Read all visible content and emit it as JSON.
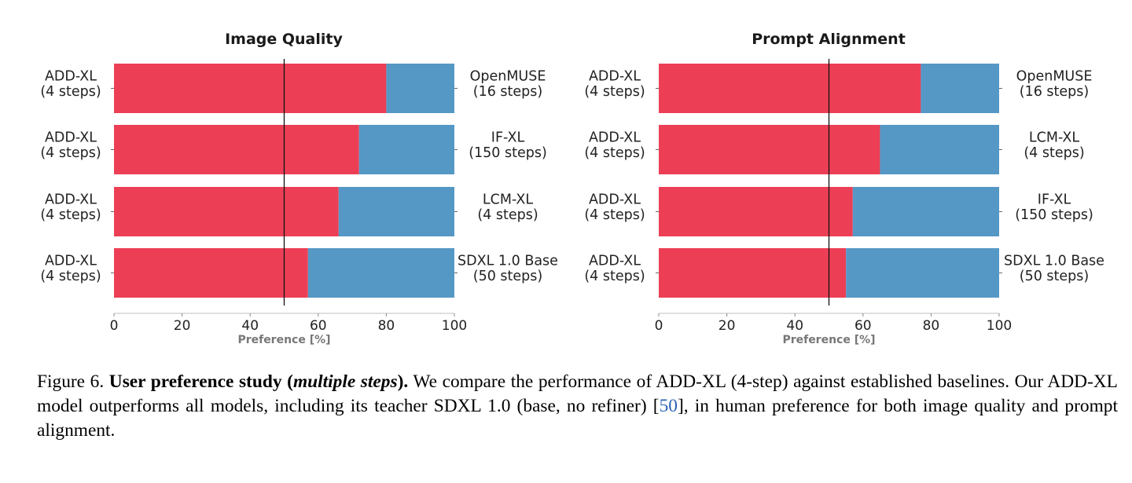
{
  "chart_data": [
    {
      "type": "bar",
      "orientation": "horizontal-stacked",
      "title": "Image Quality",
      "xlabel": "Preference [%]",
      "xlim": [
        0,
        100
      ],
      "xticks": [
        0,
        20,
        40,
        60,
        80,
        100
      ],
      "reference_line": 50,
      "rows": [
        {
          "left_label": [
            "ADD-XL",
            "(4 steps)"
          ],
          "right_label": [
            "OpenMUSE",
            "(16 steps)"
          ],
          "add_xl": 80,
          "baseline": 20
        },
        {
          "left_label": [
            "ADD-XL",
            "(4 steps)"
          ],
          "right_label": [
            "IF-XL",
            "(150 steps)"
          ],
          "add_xl": 72,
          "baseline": 28
        },
        {
          "left_label": [
            "ADD-XL",
            "(4 steps)"
          ],
          "right_label": [
            "LCM-XL",
            "(4 steps)"
          ],
          "add_xl": 66,
          "baseline": 34
        },
        {
          "left_label": [
            "ADD-XL",
            "(4 steps)"
          ],
          "right_label": [
            "SDXL 1.0 Base",
            "(50 steps)"
          ],
          "add_xl": 57,
          "baseline": 43
        }
      ]
    },
    {
      "type": "bar",
      "orientation": "horizontal-stacked",
      "title": "Prompt Alignment",
      "xlabel": "Preference [%]",
      "xlim": [
        0,
        100
      ],
      "xticks": [
        0,
        20,
        40,
        60,
        80,
        100
      ],
      "reference_line": 50,
      "rows": [
        {
          "left_label": [
            "ADD-XL",
            "(4 steps)"
          ],
          "right_label": [
            "OpenMUSE",
            "(16 steps)"
          ],
          "add_xl": 77,
          "baseline": 23
        },
        {
          "left_label": [
            "ADD-XL",
            "(4 steps)"
          ],
          "right_label": [
            "LCM-XL",
            "(4 steps)"
          ],
          "add_xl": 65,
          "baseline": 35
        },
        {
          "left_label": [
            "ADD-XL",
            "(4 steps)"
          ],
          "right_label": [
            "IF-XL",
            "(150 steps)"
          ],
          "add_xl": 57,
          "baseline": 43
        },
        {
          "left_label": [
            "ADD-XL",
            "(4 steps)"
          ],
          "right_label": [
            "SDXL 1.0 Base",
            "(50 steps)"
          ],
          "add_xl": 55,
          "baseline": 45
        }
      ]
    }
  ],
  "colors": {
    "add_xl": "#ec3f56",
    "baseline": "#5598c6",
    "reference_line": "#111111",
    "axis": "#cccccc"
  },
  "caption": {
    "figure_label": "Figure 6.",
    "bold_title_start": "User preference study (",
    "bold_italic": "multiple steps",
    "bold_title_end": ").",
    "text_before_cite": "We compare the performance of ADD-XL (4-step) against established baselines. Our ADD-XL model outperforms all models, including its teacher SDXL 1.0 (base, no refiner) [",
    "cite": "50",
    "text_after_cite": "], in human preference for both image quality and prompt alignment."
  }
}
